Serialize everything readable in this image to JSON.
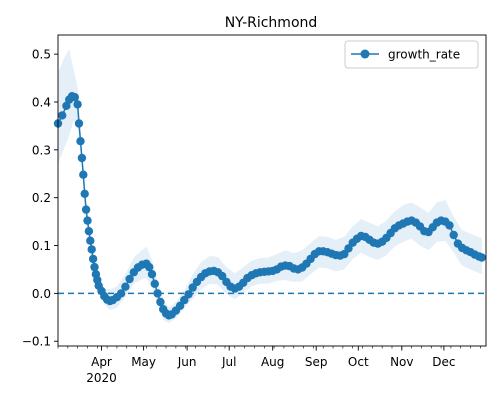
{
  "chart_data": {
    "type": "line",
    "title": "NY-Richmond",
    "xlabel": "",
    "ylabel": "",
    "xlim": [
      "2020-03-01",
      "2020-12-31"
    ],
    "ylim": [
      -0.11,
      0.54
    ],
    "x_ticks": [
      {
        "date": "2020-04-01",
        "label": "Apr",
        "sublabel": "2020"
      },
      {
        "date": "2020-05-01",
        "label": "May"
      },
      {
        "date": "2020-06-01",
        "label": "Jun"
      },
      {
        "date": "2020-07-01",
        "label": "Jul"
      },
      {
        "date": "2020-08-01",
        "label": "Aug"
      },
      {
        "date": "2020-09-01",
        "label": "Sep"
      },
      {
        "date": "2020-10-01",
        "label": "Oct"
      },
      {
        "date": "2020-11-01",
        "label": "Nov"
      },
      {
        "date": "2020-12-01",
        "label": "Dec"
      }
    ],
    "y_ticks": [
      -0.1,
      0.0,
      0.1,
      0.2,
      0.3,
      0.4,
      0.5
    ],
    "y_tick_labels": [
      "−0.1",
      "0.0",
      "0.1",
      "0.2",
      "0.3",
      "0.4",
      "0.5"
    ],
    "grid": false,
    "legend": {
      "position": "top-right",
      "entries": [
        "growth_rate"
      ]
    },
    "reference_line": {
      "y": 0.0,
      "style": "dashed",
      "color": "#1f77b4"
    },
    "colors": {
      "series": "#1f77b4",
      "band": "#c6dcef"
    },
    "series": [
      {
        "name": "growth_rate",
        "marker": "circle",
        "points": [
          [
            "2020-03-01",
            0.355
          ],
          [
            "2020-03-04",
            0.372
          ],
          [
            "2020-03-07",
            0.392
          ],
          [
            "2020-03-09",
            0.405
          ],
          [
            "2020-03-11",
            0.412
          ],
          [
            "2020-03-13",
            0.41
          ],
          [
            "2020-03-15",
            0.395
          ],
          [
            "2020-03-16",
            0.355
          ],
          [
            "2020-03-17",
            0.318
          ],
          [
            "2020-03-18",
            0.283
          ],
          [
            "2020-03-19",
            0.248
          ],
          [
            "2020-03-20",
            0.208
          ],
          [
            "2020-03-21",
            0.175
          ],
          [
            "2020-03-22",
            0.152
          ],
          [
            "2020-03-23",
            0.13
          ],
          [
            "2020-03-24",
            0.11
          ],
          [
            "2020-03-25",
            0.092
          ],
          [
            "2020-03-26",
            0.072
          ],
          [
            "2020-03-27",
            0.055
          ],
          [
            "2020-03-28",
            0.04
          ],
          [
            "2020-03-29",
            0.028
          ],
          [
            "2020-03-30",
            0.016
          ],
          [
            "2020-04-01",
            0.005
          ],
          [
            "2020-04-03",
            -0.006
          ],
          [
            "2020-04-05",
            -0.013
          ],
          [
            "2020-04-07",
            -0.016
          ],
          [
            "2020-04-09",
            -0.014
          ],
          [
            "2020-04-12",
            -0.008
          ],
          [
            "2020-04-15",
            0.0
          ],
          [
            "2020-04-18",
            0.014
          ],
          [
            "2020-04-21",
            0.03
          ],
          [
            "2020-04-24",
            0.044
          ],
          [
            "2020-04-27",
            0.054
          ],
          [
            "2020-04-30",
            0.06
          ],
          [
            "2020-05-03",
            0.062
          ],
          [
            "2020-05-05",
            0.055
          ],
          [
            "2020-05-07",
            0.04
          ],
          [
            "2020-05-09",
            0.02
          ],
          [
            "2020-05-11",
            0.0
          ],
          [
            "2020-05-13",
            -0.018
          ],
          [
            "2020-05-15",
            -0.033
          ],
          [
            "2020-05-17",
            -0.042
          ],
          [
            "2020-05-19",
            -0.046
          ],
          [
            "2020-05-21",
            -0.044
          ],
          [
            "2020-05-24",
            -0.036
          ],
          [
            "2020-05-27",
            -0.026
          ],
          [
            "2020-05-30",
            -0.014
          ],
          [
            "2020-06-02",
            -0.002
          ],
          [
            "2020-06-05",
            0.012
          ],
          [
            "2020-06-08",
            0.024
          ],
          [
            "2020-06-11",
            0.034
          ],
          [
            "2020-06-14",
            0.042
          ],
          [
            "2020-06-17",
            0.046
          ],
          [
            "2020-06-20",
            0.047
          ],
          [
            "2020-06-23",
            0.044
          ],
          [
            "2020-06-26",
            0.036
          ],
          [
            "2020-06-29",
            0.024
          ],
          [
            "2020-07-02",
            0.014
          ],
          [
            "2020-07-05",
            0.01
          ],
          [
            "2020-07-08",
            0.014
          ],
          [
            "2020-07-11",
            0.022
          ],
          [
            "2020-07-14",
            0.032
          ],
          [
            "2020-07-17",
            0.038
          ],
          [
            "2020-07-20",
            0.042
          ],
          [
            "2020-07-23",
            0.044
          ],
          [
            "2020-07-26",
            0.045
          ],
          [
            "2020-07-29",
            0.046
          ],
          [
            "2020-08-01",
            0.047
          ],
          [
            "2020-08-04",
            0.05
          ],
          [
            "2020-08-07",
            0.056
          ],
          [
            "2020-08-10",
            0.058
          ],
          [
            "2020-08-13",
            0.057
          ],
          [
            "2020-08-16",
            0.052
          ],
          [
            "2020-08-19",
            0.05
          ],
          [
            "2020-08-22",
            0.054
          ],
          [
            "2020-08-25",
            0.062
          ],
          [
            "2020-08-28",
            0.072
          ],
          [
            "2020-08-31",
            0.082
          ],
          [
            "2020-09-03",
            0.088
          ],
          [
            "2020-09-06",
            0.088
          ],
          [
            "2020-09-09",
            0.086
          ],
          [
            "2020-09-12",
            0.083
          ],
          [
            "2020-09-15",
            0.08
          ],
          [
            "2020-09-18",
            0.079
          ],
          [
            "2020-09-21",
            0.082
          ],
          [
            "2020-09-24",
            0.094
          ],
          [
            "2020-09-27",
            0.106
          ],
          [
            "2020-09-30",
            0.114
          ],
          [
            "2020-10-03",
            0.12
          ],
          [
            "2020-10-06",
            0.118
          ],
          [
            "2020-10-09",
            0.112
          ],
          [
            "2020-10-12",
            0.106
          ],
          [
            "2020-10-15",
            0.104
          ],
          [
            "2020-10-18",
            0.108
          ],
          [
            "2020-10-21",
            0.116
          ],
          [
            "2020-10-24",
            0.126
          ],
          [
            "2020-10-27",
            0.136
          ],
          [
            "2020-10-30",
            0.142
          ],
          [
            "2020-11-02",
            0.146
          ],
          [
            "2020-11-05",
            0.15
          ],
          [
            "2020-11-08",
            0.152
          ],
          [
            "2020-11-11",
            0.148
          ],
          [
            "2020-11-14",
            0.14
          ],
          [
            "2020-11-17",
            0.13
          ],
          [
            "2020-11-20",
            0.128
          ],
          [
            "2020-11-23",
            0.138
          ],
          [
            "2020-11-26",
            0.148
          ],
          [
            "2020-11-29",
            0.152
          ],
          [
            "2020-12-02",
            0.15
          ],
          [
            "2020-12-05",
            0.142
          ],
          [
            "2020-12-08",
            0.122
          ],
          [
            "2020-12-11",
            0.104
          ],
          [
            "2020-12-14",
            0.095
          ],
          [
            "2020-12-17",
            0.09
          ],
          [
            "2020-12-20",
            0.086
          ],
          [
            "2020-12-23",
            0.081
          ],
          [
            "2020-12-26",
            0.077
          ],
          [
            "2020-12-28",
            0.075
          ]
        ],
        "band": [
          [
            "2020-03-01",
            0.27,
            0.46
          ],
          [
            "2020-03-05",
            0.3,
            0.49
          ],
          [
            "2020-03-09",
            0.33,
            0.51
          ],
          [
            "2020-03-12",
            0.36,
            0.47
          ],
          [
            "2020-03-15",
            0.36,
            0.43
          ],
          [
            "2020-03-18",
            0.26,
            0.3
          ],
          [
            "2020-03-22",
            0.14,
            0.165
          ],
          [
            "2020-03-26",
            0.06,
            0.085
          ],
          [
            "2020-03-30",
            0.005,
            0.03
          ],
          [
            "2020-04-03",
            -0.022,
            0.01
          ],
          [
            "2020-04-07",
            -0.035,
            0.008
          ],
          [
            "2020-04-12",
            -0.03,
            0.015
          ],
          [
            "2020-04-18",
            -0.008,
            0.04
          ],
          [
            "2020-04-24",
            0.02,
            0.075
          ],
          [
            "2020-04-30",
            0.03,
            0.09
          ],
          [
            "2020-05-03",
            0.032,
            0.098
          ],
          [
            "2020-05-07",
            0.012,
            0.07
          ],
          [
            "2020-05-11",
            -0.022,
            0.025
          ],
          [
            "2020-05-15",
            -0.055,
            -0.012
          ],
          [
            "2020-05-19",
            -0.062,
            -0.03
          ],
          [
            "2020-05-24",
            -0.052,
            -0.018
          ],
          [
            "2020-05-30",
            -0.03,
            0.005
          ],
          [
            "2020-06-05",
            -0.012,
            0.04
          ],
          [
            "2020-06-11",
            0.008,
            0.065
          ],
          [
            "2020-06-17",
            0.02,
            0.078
          ],
          [
            "2020-06-23",
            0.018,
            0.076
          ],
          [
            "2020-06-29",
            -0.002,
            0.055
          ],
          [
            "2020-07-05",
            -0.012,
            0.042
          ],
          [
            "2020-07-11",
            0.0,
            0.055
          ],
          [
            "2020-07-17",
            0.015,
            0.068
          ],
          [
            "2020-07-23",
            0.02,
            0.074
          ],
          [
            "2020-07-29",
            0.02,
            0.075
          ],
          [
            "2020-08-04",
            0.026,
            0.082
          ],
          [
            "2020-08-10",
            0.028,
            0.09
          ],
          [
            "2020-08-16",
            0.024,
            0.084
          ],
          [
            "2020-08-22",
            0.025,
            0.09
          ],
          [
            "2020-08-28",
            0.04,
            0.105
          ],
          [
            "2020-09-03",
            0.054,
            0.12
          ],
          [
            "2020-09-09",
            0.052,
            0.118
          ],
          [
            "2020-09-15",
            0.046,
            0.112
          ],
          [
            "2020-09-21",
            0.05,
            0.118
          ],
          [
            "2020-09-27",
            0.072,
            0.14
          ],
          [
            "2020-10-03",
            0.085,
            0.155
          ],
          [
            "2020-10-09",
            0.076,
            0.148
          ],
          [
            "2020-10-15",
            0.07,
            0.14
          ],
          [
            "2020-10-21",
            0.08,
            0.152
          ],
          [
            "2020-10-27",
            0.098,
            0.172
          ],
          [
            "2020-11-02",
            0.108,
            0.184
          ],
          [
            "2020-11-08",
            0.114,
            0.19
          ],
          [
            "2020-11-14",
            0.1,
            0.18
          ],
          [
            "2020-11-20",
            0.09,
            0.168
          ],
          [
            "2020-11-26",
            0.108,
            0.19
          ],
          [
            "2020-12-02",
            0.11,
            0.195
          ],
          [
            "2020-12-08",
            0.085,
            0.16
          ],
          [
            "2020-12-14",
            0.058,
            0.132
          ],
          [
            "2020-12-20",
            0.05,
            0.125
          ],
          [
            "2020-12-28",
            0.04,
            0.115
          ]
        ]
      }
    ]
  }
}
